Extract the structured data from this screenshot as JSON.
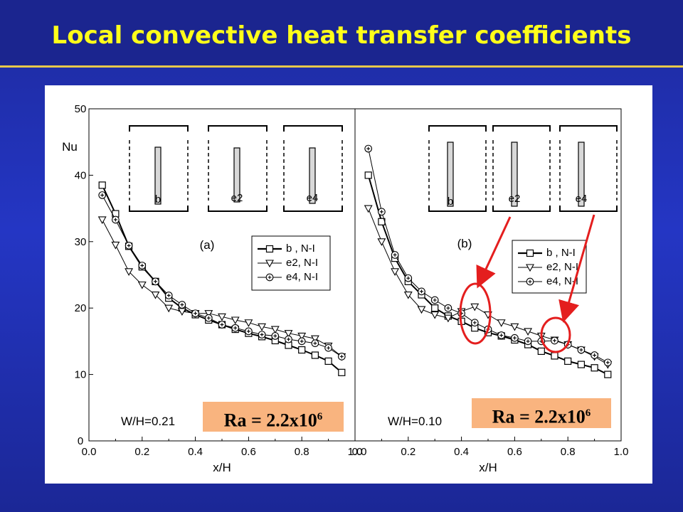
{
  "title": "Local convective heat transfer coefficients",
  "colors": {
    "background": "#2436c4",
    "title": "#ffff1a",
    "highlight": "#f9b47f",
    "annotation": "#e41e1e"
  },
  "chart_data": [
    {
      "type": "line",
      "panel_label": "(a)",
      "ylabel": "Nu",
      "xlabel": "x/H",
      "xlim": [
        0.0,
        1.0
      ],
      "ylim": [
        0,
        50
      ],
      "x_ticks": [
        "0.0",
        "0.2",
        "0.4",
        "0.6",
        "0.8",
        "1.0"
      ],
      "y_ticks": [
        "0",
        "10",
        "20",
        "30",
        "40",
        "50"
      ],
      "grid": false,
      "legend_position": "center-right",
      "geometry_note": "W/H=0.21",
      "ra_label": {
        "main": "Ra = 2.2x10",
        "exp": "6"
      },
      "inset_labels": [
        "b",
        "e2",
        "e4"
      ],
      "series": [
        {
          "name": "b , N-I",
          "marker": "square",
          "x": [
            0.05,
            0.1,
            0.15,
            0.2,
            0.25,
            0.3,
            0.35,
            0.4,
            0.45,
            0.5,
            0.55,
            0.6,
            0.65,
            0.7,
            0.75,
            0.8,
            0.85,
            0.9,
            0.95
          ],
          "y": [
            38.5,
            34.2,
            29.3,
            26.2,
            24.0,
            21.5,
            20.0,
            19.0,
            18.2,
            17.5,
            16.8,
            16.2,
            15.7,
            15.1,
            14.4,
            13.7,
            12.9,
            12.0,
            10.3
          ]
        },
        {
          "name": "e2, N-I",
          "marker": "triangle-down",
          "x": [
            0.05,
            0.1,
            0.15,
            0.2,
            0.25,
            0.3,
            0.35,
            0.4,
            0.45,
            0.5,
            0.55,
            0.6,
            0.65,
            0.7,
            0.75,
            0.8,
            0.85,
            0.9,
            0.95
          ],
          "y": [
            33.3,
            29.5,
            25.5,
            23.5,
            22.0,
            20.0,
            19.5,
            19.2,
            19.2,
            18.7,
            18.2,
            17.8,
            17.2,
            16.8,
            16.2,
            15.8,
            15.4,
            14.3,
            12.7
          ]
        },
        {
          "name": "e4, N-I",
          "marker": "circle-plus",
          "x": [
            0.05,
            0.1,
            0.15,
            0.2,
            0.25,
            0.3,
            0.35,
            0.4,
            0.45,
            0.5,
            0.55,
            0.6,
            0.65,
            0.7,
            0.75,
            0.8,
            0.85,
            0.9,
            0.95
          ],
          "y": [
            37.0,
            33.3,
            29.4,
            26.4,
            24.0,
            21.9,
            20.5,
            19.2,
            18.5,
            17.5,
            17.0,
            16.5,
            16.0,
            15.8,
            15.3,
            15.0,
            14.7,
            14.0,
            12.7
          ]
        }
      ]
    },
    {
      "type": "line",
      "panel_label": "(b)",
      "xlabel": "x/H",
      "xlim": [
        0.0,
        1.0
      ],
      "ylim": [
        0,
        50
      ],
      "x_ticks": [
        "0.0",
        "0.2",
        "0.4",
        "0.6",
        "0.8",
        "1.0"
      ],
      "grid": false,
      "legend_position": "center-right",
      "geometry_note": "W/H=0.10",
      "ra_label": {
        "main": "Ra = 2.2x10",
        "exp": "6"
      },
      "inset_labels": [
        "b",
        "e2",
        "e4"
      ],
      "series": [
        {
          "name": "b , N-I",
          "marker": "square",
          "x": [
            0.05,
            0.1,
            0.15,
            0.2,
            0.25,
            0.3,
            0.35,
            0.4,
            0.45,
            0.5,
            0.55,
            0.6,
            0.65,
            0.7,
            0.75,
            0.8,
            0.85,
            0.9,
            0.95
          ],
          "y": [
            40.0,
            33.0,
            27.5,
            24.0,
            22.0,
            20.0,
            18.8,
            18.0,
            17.0,
            16.3,
            15.8,
            15.2,
            14.5,
            13.5,
            12.8,
            12.0,
            11.5,
            11.0,
            10.0
          ]
        },
        {
          "name": "e2, N-I",
          "marker": "triangle-down",
          "x": [
            0.05,
            0.1,
            0.15,
            0.2,
            0.25,
            0.3,
            0.35,
            0.4,
            0.45,
            0.5,
            0.55,
            0.6,
            0.65,
            0.7,
            0.75,
            0.8,
            0.85,
            0.9,
            0.95
          ],
          "y": [
            35.0,
            30.0,
            25.5,
            22.0,
            19.8,
            19.0,
            18.5,
            19.5,
            20.2,
            19.0,
            17.8,
            17.2,
            16.5,
            15.8,
            15.2,
            14.5,
            13.7,
            12.7,
            11.5
          ]
        },
        {
          "name": "e4, N-I",
          "marker": "circle-plus",
          "x": [
            0.05,
            0.1,
            0.15,
            0.2,
            0.25,
            0.3,
            0.35,
            0.4,
            0.45,
            0.5,
            0.55,
            0.6,
            0.65,
            0.7,
            0.75,
            0.8,
            0.85,
            0.9,
            0.95
          ],
          "y": [
            44.0,
            34.5,
            28.0,
            24.5,
            22.5,
            21.2,
            20.0,
            19.2,
            17.8,
            16.8,
            15.9,
            15.5,
            15.0,
            15.0,
            15.1,
            14.5,
            13.7,
            12.9,
            11.8
          ]
        }
      ]
    }
  ]
}
